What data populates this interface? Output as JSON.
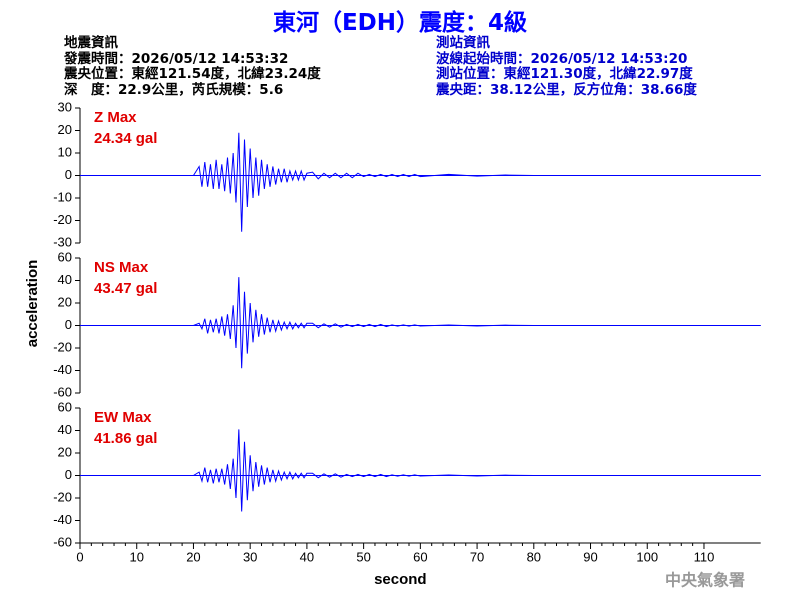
{
  "header": {
    "title": "東河（EDH）震度：4級",
    "left": [
      "地震資訊",
      "發震時間：2026/05/12 14:53:32",
      "震央位置：東經121.54度，北緯23.24度",
      "深　度：22.9公里，芮氏規模：5.6"
    ],
    "right": [
      "測站資訊",
      "波線起始時間：2026/05/12 14:53:20",
      "測站位置：東經121.30度，北緯22.97度",
      "震央距：38.12公里，反方位角：38.66度"
    ],
    "footer": "中央氣象署"
  },
  "chart_data": [
    {
      "type": "line",
      "annotations": [
        "Z Max",
        "24.34 gal"
      ],
      "color": "#0000ff",
      "xlim": [
        0,
        120
      ],
      "ylim": [
        -30,
        30
      ],
      "yticks": [
        -30,
        -20,
        -10,
        0,
        10,
        20,
        30
      ],
      "x": [
        0,
        20,
        21,
        21.5,
        22,
        22.5,
        23,
        23.5,
        24,
        24.5,
        25,
        25.5,
        26,
        26.5,
        27,
        27.5,
        28,
        28.5,
        29,
        29.5,
        30,
        30.5,
        31,
        31.5,
        32,
        32.5,
        33,
        33.5,
        34,
        34.5,
        35,
        35.5,
        36,
        36.5,
        37,
        37.5,
        38,
        38.5,
        39,
        39.5,
        40,
        41,
        42,
        43,
        44,
        45,
        46,
        47,
        48,
        49,
        50,
        51,
        52,
        53,
        54,
        55,
        56,
        57,
        58,
        59,
        60,
        65,
        70,
        75,
        80,
        120
      ],
      "values": [
        0,
        0,
        4,
        -5,
        6,
        -5,
        5,
        -6,
        7,
        -6,
        5,
        -7,
        8,
        -8,
        10,
        -12,
        19,
        -25,
        16,
        -14,
        12,
        -10,
        8,
        -9,
        7,
        -6,
        5,
        -5,
        4,
        -4,
        3,
        -3,
        3,
        -3,
        2,
        -2,
        2,
        -2,
        2,
        -2,
        1,
        1.5,
        -1.5,
        1,
        -1,
        1,
        -1,
        1,
        -1,
        1,
        -0.5,
        0.5,
        -0.5,
        0.5,
        -0.5,
        0.5,
        -0.5,
        0.5,
        -0.5,
        0.5,
        -0.5,
        0.5,
        -0.3,
        0.2,
        0,
        0
      ]
    },
    {
      "type": "line",
      "annotations": [
        "NS Max",
        "43.47 gal"
      ],
      "color": "#0000ff",
      "ylabel": "acceleration",
      "xlim": [
        0,
        120
      ],
      "ylim": [
        -60,
        60
      ],
      "yticks": [
        -60,
        -40,
        -20,
        0,
        20,
        40,
        60
      ],
      "x": [
        0,
        20,
        21,
        21.5,
        22,
        22.5,
        23,
        23.5,
        24,
        24.5,
        25,
        25.5,
        26,
        26.5,
        27,
        27.5,
        28,
        28.5,
        29,
        29.5,
        30,
        30.5,
        31,
        31.5,
        32,
        32.5,
        33,
        33.5,
        34,
        34.5,
        35,
        35.5,
        36,
        36.5,
        37,
        37.5,
        38,
        38.5,
        39,
        39.5,
        40,
        41,
        42,
        43,
        44,
        45,
        46,
        47,
        48,
        49,
        50,
        51,
        52,
        53,
        54,
        55,
        56,
        57,
        58,
        59,
        60,
        65,
        70,
        75,
        80,
        120
      ],
      "values": [
        0,
        0,
        2,
        -3,
        6,
        -7,
        5,
        -6,
        6,
        -7,
        8,
        -9,
        10,
        -12,
        18,
        -20,
        43,
        -38,
        30,
        -25,
        20,
        -15,
        14,
        -10,
        10,
        -8,
        7,
        -6,
        5,
        -5,
        4,
        -4,
        3,
        -3,
        3,
        -3,
        2,
        -2,
        2,
        -2,
        2,
        2,
        -2,
        1.5,
        -1.5,
        1.5,
        -1.5,
        1,
        -1,
        1,
        -1,
        1,
        -1,
        1,
        -1,
        0.5,
        -0.5,
        0.5,
        -0.5,
        0.5,
        -0.5,
        0.5,
        -0.5,
        0.3,
        0,
        0
      ]
    },
    {
      "type": "line",
      "annotations": [
        "EW Max",
        "41.86 gal"
      ],
      "color": "#0000ff",
      "xlabel": "second",
      "xlim": [
        0,
        120
      ],
      "xticks": [
        0,
        10,
        20,
        30,
        40,
        50,
        60,
        70,
        80,
        90,
        100,
        110
      ],
      "ylim": [
        -60,
        60
      ],
      "yticks": [
        -60,
        -40,
        -20,
        0,
        20,
        40,
        60
      ],
      "x": [
        0,
        20,
        21,
        21.5,
        22,
        22.5,
        23,
        23.5,
        24,
        24.5,
        25,
        25.5,
        26,
        26.5,
        27,
        27.5,
        28,
        28.5,
        29,
        29.5,
        30,
        30.5,
        31,
        31.5,
        32,
        32.5,
        33,
        33.5,
        34,
        34.5,
        35,
        35.5,
        36,
        36.5,
        37,
        37.5,
        38,
        38.5,
        39,
        39.5,
        40,
        41,
        42,
        43,
        44,
        45,
        46,
        47,
        48,
        49,
        50,
        51,
        52,
        53,
        54,
        55,
        56,
        57,
        58,
        59,
        60,
        65,
        70,
        75,
        80,
        120
      ],
      "values": [
        0,
        0,
        3,
        -5,
        7,
        -6,
        5,
        -7,
        6,
        -6,
        6,
        -8,
        10,
        -12,
        15,
        -20,
        41,
        -32,
        30,
        -22,
        18,
        -14,
        12,
        -10,
        9,
        -8,
        7,
        -6,
        5,
        -5,
        4,
        -4,
        3,
        -3,
        3,
        -3,
        2,
        -2,
        2,
        -2,
        2,
        2,
        -2,
        1.5,
        -1.5,
        1.5,
        -1.5,
        1,
        -1,
        1,
        -1,
        1,
        -1,
        1,
        -1,
        0.5,
        -0.5,
        0.5,
        -0.5,
        0.5,
        -0.5,
        0.5,
        -0.5,
        0.3,
        0,
        0
      ]
    }
  ]
}
